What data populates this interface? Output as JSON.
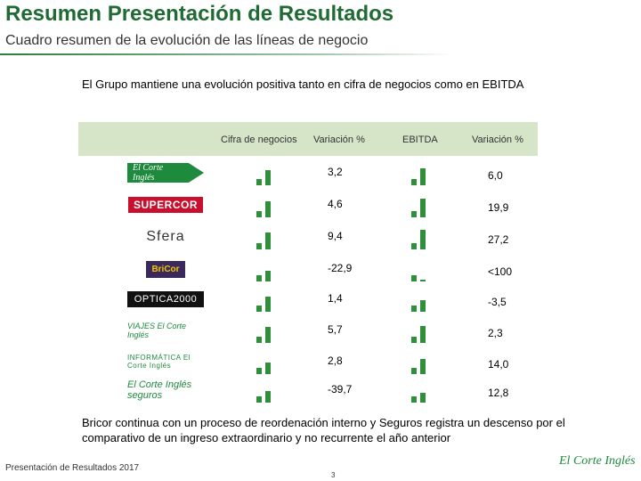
{
  "header": {
    "title": "Resumen Presentación de Resultados",
    "subtitle": "Cuadro resumen de la evolución de las líneas de negocio"
  },
  "intro": "El Grupo mantiene una evolución positiva tanto en cifra de negocios como en EBITDA",
  "table": {
    "columns": {
      "cifra": "Cifra de negocios",
      "variacion1": "Variación %",
      "ebitda": "EBITDA",
      "variacion2": "Variación %"
    },
    "rows": [
      {
        "logo": "El Corte Inglés",
        "cifra_var": "3,2",
        "ebitda_var": "6,0",
        "cifra_bar": 0.75,
        "ebitda_bar": 0.85
      },
      {
        "logo": "SUPERCOR",
        "cifra_var": "4,6",
        "ebitda_var": "19,9",
        "cifra_bar": 0.8,
        "ebitda_bar": 0.95
      },
      {
        "logo": "Sfera",
        "cifra_var": "9,4",
        "ebitda_var": "27,2",
        "cifra_bar": 0.85,
        "ebitda_bar": 1.0
      },
      {
        "logo": "BriCor",
        "cifra_var": "-22,9",
        "ebitda_var": "<100",
        "cifra_bar": 0.55,
        "ebitda_bar": 0.1
      },
      {
        "logo": "OPTICA2000",
        "cifra_var": "1,4",
        "ebitda_var": "-3,5",
        "cifra_bar": 0.75,
        "ebitda_bar": 0.6
      },
      {
        "logo": "VIAJES El Corte Inglés",
        "cifra_var": "5,7",
        "ebitda_var": "2,3",
        "cifra_bar": 0.8,
        "ebitda_bar": 0.85
      },
      {
        "logo": "INFORMÁTICA El Corte Inglés",
        "cifra_var": "2,8",
        "ebitda_var": "14,0",
        "cifra_bar": 0.6,
        "ebitda_bar": 0.75
      },
      {
        "logo": "El Corte Inglés seguros",
        "cifra_var": "-39,7",
        "ebitda_var": "12,8",
        "cifra_bar": 0.6,
        "ebitda_bar": 0.5
      }
    ]
  },
  "footer_text": "Bricor continua con un proceso de reordenación interno y Seguros registra un descenso por el comparativo de un ingreso extraordinario y no recurrente el año anterior",
  "footer": {
    "left": "Presentación de Resultados 2017",
    "page": "3",
    "logo": "El Corte Inglés"
  },
  "colors": {
    "accent": "#1f6b33",
    "header_bg": "#d6e4c8",
    "bar": "#2f8f3a"
  }
}
